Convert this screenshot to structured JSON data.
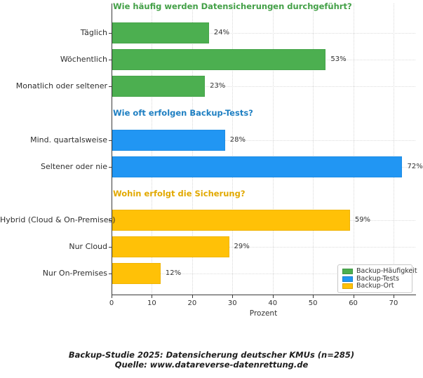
{
  "chart_data": {
    "type": "bar",
    "orientation": "horizontal",
    "title": "",
    "xlabel": "Prozent",
    "xlim": [
      0,
      75.4
    ],
    "xticks": [
      0,
      10,
      20,
      30,
      40,
      50,
      60,
      70
    ],
    "grid": true,
    "value_suffix": "%",
    "groups": [
      {
        "title": "Wie häufig werden Datensicherungen durchgeführt?",
        "title_color": "#43a047",
        "bar_color": "#4caf50",
        "bars": [
          {
            "label": "Täglich",
            "value": 24
          },
          {
            "label": "Wöchentlich",
            "value": 53
          },
          {
            "label": "Monatlich oder seltener",
            "value": 23
          }
        ]
      },
      {
        "title": "Wie oft erfolgen Backup-Tests?",
        "title_color": "#1e7fc2",
        "bar_color": "#2196f3",
        "bars": [
          {
            "label": "Mind. quartalsweise",
            "value": 28
          },
          {
            "label": "Seltener oder nie",
            "value": 72
          }
        ]
      },
      {
        "title": "Wohin erfolgt die Sicherung?",
        "title_color": "#e2a900",
        "bar_color": "#ffc107",
        "bars": [
          {
            "label": "Hybrid (Cloud & On-Premises)",
            "value": 59
          },
          {
            "label": "Nur Cloud",
            "value": 29
          },
          {
            "label": "Nur On-Premises",
            "value": 12
          }
        ]
      }
    ],
    "legend": {
      "position": "lower right",
      "entries": [
        {
          "label": "Backup-Häufigkeit",
          "color": "#4caf50"
        },
        {
          "label": "Backup-Tests",
          "color": "#2196f3"
        },
        {
          "label": "Backup-Ort",
          "color": "#ffc107"
        }
      ]
    }
  },
  "footer": {
    "line1": "Backup-Studie 2025: Datensicherung deutscher KMUs (n=285)",
    "line2": "Quelle: www.datareverse-datenrettung.de"
  }
}
